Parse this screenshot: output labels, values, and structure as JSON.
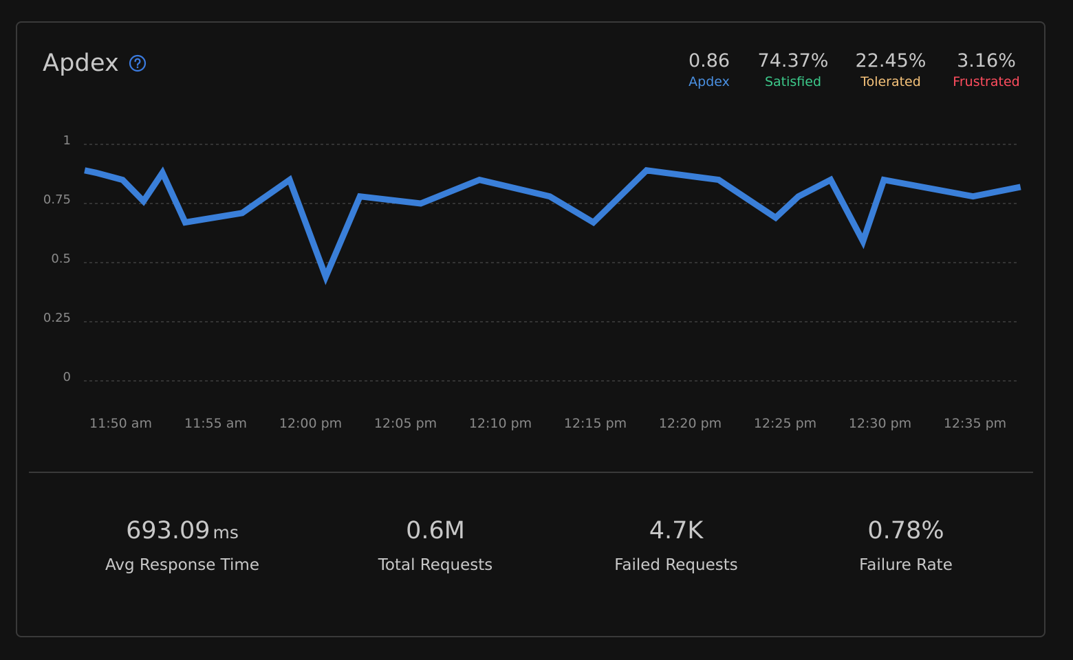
{
  "panel": {
    "title": "Apdex",
    "help_icon": "question-circle-icon"
  },
  "summary": [
    {
      "value": "0.86",
      "label": "Apdex",
      "color": "#4a90e2"
    },
    {
      "value": "74.37%",
      "label": "Satisfied",
      "color": "#3cc98a"
    },
    {
      "value": "22.45%",
      "label": "Tolerated",
      "color": "#f5c27a"
    },
    {
      "value": "3.16%",
      "label": "Frustrated",
      "color": "#ff4d5e"
    }
  ],
  "chart_data": {
    "type": "line",
    "title": "Apdex",
    "xlabel": "",
    "ylabel": "",
    "ylim": [
      0,
      1
    ],
    "yticks": [
      1,
      0.75,
      0.5,
      0.25,
      0
    ],
    "ytick_labels": [
      "1",
      "0.75",
      "0.5",
      "0.25",
      "0"
    ],
    "xtick_labels": [
      "11:50 am",
      "11:55 am",
      "12:00 pm",
      "12:05 pm",
      "12:10 pm",
      "12:15 pm",
      "12:20 pm",
      "12:25 pm",
      "12:30 pm",
      "12:35 pm"
    ],
    "xtick_minutes": [
      0,
      5,
      10,
      15,
      20,
      25,
      30,
      35,
      40,
      45
    ],
    "grid": true,
    "series": [
      {
        "name": "Apdex",
        "color": "#3a7fd9",
        "x": [
          -1.9,
          -1.3,
          0.1,
          1.2,
          2.2,
          3.4,
          6.4,
          8.9,
          10.8,
          12.6,
          15.8,
          18.9,
          22.6,
          24.9,
          27.7,
          31.5,
          34.5,
          35.7,
          37.4,
          39.1,
          40.2,
          44.9,
          47.4
        ],
        "y": [
          0.89,
          0.88,
          0.85,
          0.76,
          0.88,
          0.67,
          0.71,
          0.85,
          0.44,
          0.78,
          0.75,
          0.85,
          0.78,
          0.67,
          0.89,
          0.85,
          0.69,
          0.78,
          0.85,
          0.59,
          0.85,
          0.78,
          0.82
        ]
      }
    ]
  },
  "kpis": [
    {
      "value": "693.09",
      "unit": "ms",
      "label": "Avg Response Time"
    },
    {
      "value": "0.6M",
      "unit": "",
      "label": "Total Requests"
    },
    {
      "value": "4.7K",
      "unit": "",
      "label": "Failed Requests"
    },
    {
      "value": "0.78%",
      "unit": "",
      "label": "Failure Rate"
    }
  ]
}
